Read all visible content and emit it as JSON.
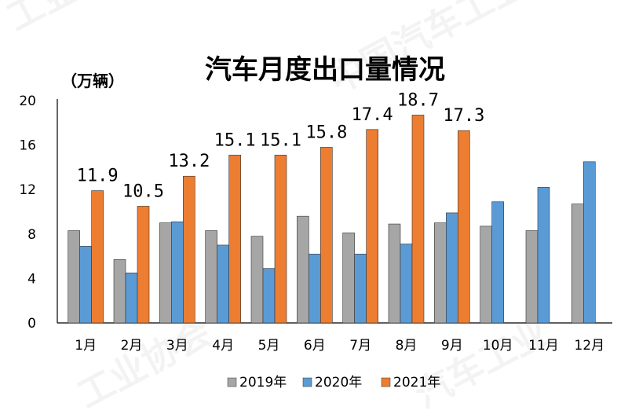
{
  "chart_data": {
    "type": "bar",
    "title": "汽车月度出口量情况",
    "unit_label": "（万辆）",
    "categories": [
      "1月",
      "2月",
      "3月",
      "4月",
      "5月",
      "6月",
      "7月",
      "8月",
      "9月",
      "10月",
      "11月",
      "12月"
    ],
    "series": [
      {
        "name": "2019年",
        "color": "#a6a6a6",
        "values": [
          8.3,
          5.7,
          9.0,
          8.3,
          7.8,
          9.6,
          8.1,
          8.9,
          9.0,
          8.7,
          8.3,
          10.7
        ]
      },
      {
        "name": "2020年",
        "color": "#5b9bd5",
        "values": [
          6.9,
          4.5,
          9.1,
          7.0,
          4.9,
          6.2,
          6.2,
          7.1,
          9.9,
          10.9,
          12.2,
          14.5
        ]
      },
      {
        "name": "2021年",
        "color": "#ed7d31",
        "values": [
          11.9,
          10.5,
          13.2,
          15.1,
          15.1,
          15.8,
          17.4,
          18.7,
          17.3,
          null,
          null,
          null
        ]
      }
    ],
    "data_labels": [
      "11.9",
      "10.5",
      "13.2",
      "15.1",
      "15.1",
      "15.8",
      "17.4",
      "18.7",
      "17.3"
    ],
    "yticks": [
      "0",
      "4",
      "8",
      "12",
      "16",
      "20"
    ],
    "ylim": [
      0,
      20
    ],
    "grid": false,
    "legend_position": "bottom"
  }
}
